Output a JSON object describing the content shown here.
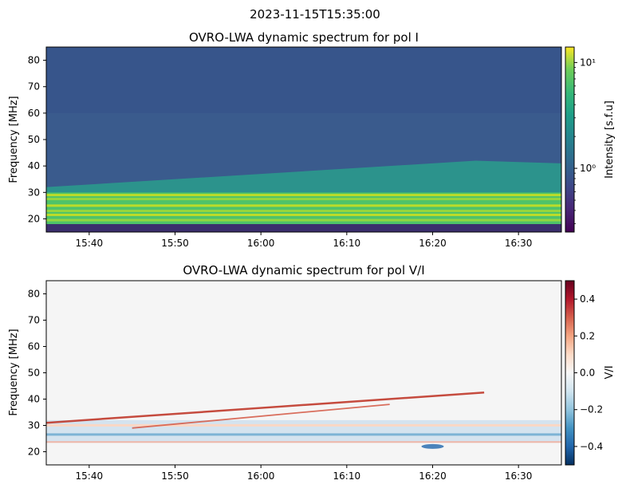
{
  "figure": {
    "suptitle": "2023-11-15T15:35:00"
  },
  "chart_data": [
    {
      "type": "heatmap",
      "title": "OVRO-LWA dynamic spectrum for pol I",
      "xlabel": "",
      "ylabel": "Frequency [MHz]",
      "x_range": [
        "15:35",
        "16:35"
      ],
      "x_ticks": [
        "15:40",
        "15:50",
        "16:00",
        "16:10",
        "16:20",
        "16:30"
      ],
      "ylim": [
        15,
        85
      ],
      "y_ticks": [
        20,
        30,
        40,
        50,
        60,
        70,
        80
      ],
      "colormap": "viridis",
      "colorbar": {
        "label": "Intensity [s.f.u]",
        "scale": "log",
        "range": [
          0.25,
          14
        ],
        "ticks": [
          {
            "value": 1,
            "label": "10⁰"
          },
          {
            "value": 10,
            "label": "10¹"
          }
        ]
      },
      "features": {
        "background_sfu": 0.7,
        "strong_band_mhz": [
          18,
          30
        ],
        "moderate_band_upper_edge": {
          "start_time": "15:35",
          "start_mhz": 32,
          "end_time": "16:25",
          "end_mhz": 42
        },
        "bottom_dark_band_mhz": [
          15,
          18
        ]
      }
    },
    {
      "type": "heatmap",
      "title": "OVRO-LWA dynamic spectrum for pol V/I",
      "xlabel": "",
      "ylabel": "Frequency [MHz]",
      "x_range": [
        "15:35",
        "16:35"
      ],
      "x_ticks": [
        "15:40",
        "15:50",
        "16:00",
        "16:10",
        "16:20",
        "16:30"
      ],
      "ylim": [
        15,
        85
      ],
      "y_ticks": [
        20,
        30,
        40,
        50,
        60,
        70,
        80
      ],
      "colormap": "RdBu_r",
      "colorbar": {
        "label": "V/I",
        "scale": "linear",
        "range": [
          -0.5,
          0.5
        ],
        "ticks": [
          {
            "value": 0.4,
            "label": "0.4"
          },
          {
            "value": 0.2,
            "label": "0.2"
          },
          {
            "value": 0.0,
            "label": "0.0"
          },
          {
            "value": -0.2,
            "label": "−0.2"
          },
          {
            "value": -0.4,
            "label": "−0.4"
          }
        ]
      },
      "features": {
        "background_value": 0.0,
        "positive_drift_lanes": [
          {
            "start_time": "15:35",
            "start_mhz": 31,
            "end_time": "16:26",
            "end_mhz": 42.5,
            "value": 0.45
          },
          {
            "start_time": "15:45",
            "start_mhz": 29,
            "end_time": "16:15",
            "end_mhz": 38,
            "value": 0.3
          }
        ],
        "negative_band_mhz": [
          24,
          32
        ],
        "negative_patch": {
          "time": "16:20",
          "mhz": 22,
          "value": -0.4
        }
      }
    }
  ],
  "colors": {
    "axes_edge": "#000000",
    "text": "#000000"
  }
}
